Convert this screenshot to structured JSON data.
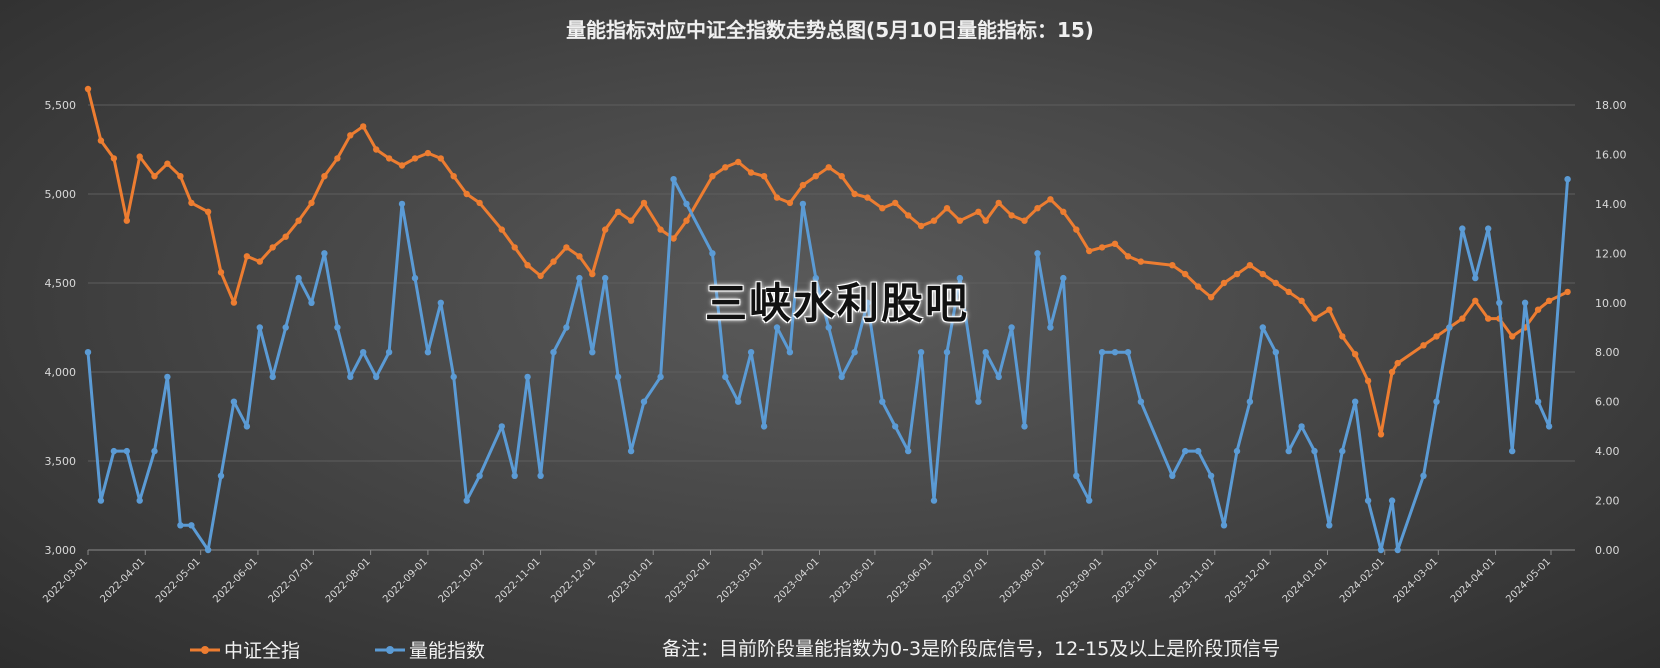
{
  "title": "量能指标对应中证全指数走势总图(5月10日量能指标：15)",
  "footnote": "备注：目前阶段量能指数为0-3是阶段底信号，12-15及以上是阶段顶信号",
  "watermark": "三峡水利股吧",
  "colors": {
    "orange": "#ed7d31",
    "blue": "#5b9bd5",
    "text": "#d9d9d9",
    "grid": "#5e5e5e"
  },
  "chart_data": {
    "type": "line",
    "title": "量能指标对应中证全指数走势总图(5月10日量能指标：15)",
    "x_tick_labels": [
      "2022-03-01",
      "2022-04-01",
      "2022-05-01",
      "2022-06-01",
      "2022-07-01",
      "2022-08-01",
      "2022-09-01",
      "2022-10-01",
      "2022-11-01",
      "2022-12-01",
      "2023-01-01",
      "2023-02-01",
      "2023-03-01",
      "2023-04-01",
      "2023-05-01",
      "2023-06-01",
      "2023-07-01",
      "2023-08-01",
      "2023-09-01",
      "2023-10-01",
      "2023-11-01",
      "2023-12-01",
      "2024-01-01",
      "2024-02-01",
      "2024-03-01",
      "2024-04-01",
      "2024-05-01"
    ],
    "y_left": {
      "min": 3000,
      "max": 5500,
      "ticks": [
        "3,000",
        "3,500",
        "4,000",
        "4,500",
        "5,000",
        "5,500"
      ]
    },
    "y_right": {
      "min": 0,
      "max": 18,
      "ticks": [
        "0.00",
        "2.00",
        "4.00",
        "6.00",
        "8.00",
        "10.00",
        "12.00",
        "14.00",
        "16.00",
        "18.00"
      ]
    },
    "grid": "horizontal",
    "legend_position": "bottom-left",
    "series": [
      {
        "name": "中证全指",
        "axis": "left",
        "color": "#ed7d31",
        "x": [
          "2022-03-01",
          "2022-03-08",
          "2022-03-15",
          "2022-03-22",
          "2022-03-29",
          "2022-04-06",
          "2022-04-13",
          "2022-04-20",
          "2022-04-26",
          "2022-05-05",
          "2022-05-12",
          "2022-05-19",
          "2022-05-26",
          "2022-06-02",
          "2022-06-09",
          "2022-06-16",
          "2022-06-23",
          "2022-06-30",
          "2022-07-07",
          "2022-07-14",
          "2022-07-21",
          "2022-07-28",
          "2022-08-04",
          "2022-08-11",
          "2022-08-18",
          "2022-08-25",
          "2022-09-01",
          "2022-09-08",
          "2022-09-15",
          "2022-09-22",
          "2022-09-29",
          "2022-10-11",
          "2022-10-18",
          "2022-10-25",
          "2022-11-01",
          "2022-11-08",
          "2022-11-15",
          "2022-11-22",
          "2022-11-29",
          "2022-12-06",
          "2022-12-13",
          "2022-12-20",
          "2022-12-27",
          "2023-01-05",
          "2023-01-12",
          "2023-01-19",
          "2023-02-02",
          "2023-02-09",
          "2023-02-16",
          "2023-02-23",
          "2023-03-02",
          "2023-03-09",
          "2023-03-16",
          "2023-03-23",
          "2023-03-30",
          "2023-04-06",
          "2023-04-13",
          "2023-04-20",
          "2023-04-27",
          "2023-05-05",
          "2023-05-12",
          "2023-05-19",
          "2023-05-26",
          "2023-06-02",
          "2023-06-09",
          "2023-06-16",
          "2023-06-26",
          "2023-06-30",
          "2023-07-07",
          "2023-07-14",
          "2023-07-21",
          "2023-07-28",
          "2023-08-04",
          "2023-08-11",
          "2023-08-18",
          "2023-08-25",
          "2023-09-01",
          "2023-09-08",
          "2023-09-15",
          "2023-09-22",
          "2023-10-09",
          "2023-10-16",
          "2023-10-23",
          "2023-10-30",
          "2023-11-06",
          "2023-11-13",
          "2023-11-20",
          "2023-11-27",
          "2023-12-04",
          "2023-12-11",
          "2023-12-18",
          "2023-12-25",
          "2024-01-02",
          "2024-01-09",
          "2024-01-16",
          "2024-01-23",
          "2024-01-30",
          "2024-02-05",
          "2024-02-08",
          "2024-02-22",
          "2024-02-29",
          "2024-03-07",
          "2024-03-14",
          "2024-03-21",
          "2024-03-28",
          "2024-04-03",
          "2024-04-10",
          "2024-04-17",
          "2024-04-24",
          "2024-04-30",
          "2024-05-10"
        ],
        "values": [
          5590,
          5300,
          5200,
          4850,
          5210,
          5100,
          5170,
          5100,
          4950,
          4900,
          4560,
          4390,
          4650,
          4620,
          4700,
          4760,
          4850,
          4950,
          5100,
          5200,
          5330,
          5380,
          5250,
          5200,
          5160,
          5200,
          5230,
          5200,
          5100,
          5000,
          4950,
          4800,
          4700,
          4600,
          4540,
          4620,
          4700,
          4650,
          4550,
          4800,
          4900,
          4850,
          4950,
          4800,
          4750,
          4850,
          5100,
          5150,
          5180,
          5120,
          5100,
          4980,
          4950,
          5050,
          5100,
          5150,
          5100,
          5000,
          4980,
          4920,
          4950,
          4880,
          4820,
          4850,
          4920,
          4850,
          4900,
          4850,
          4950,
          4880,
          4850,
          4920,
          4970,
          4900,
          4800,
          4680,
          4700,
          4720,
          4650,
          4620,
          4600,
          4550,
          4480,
          4420,
          4500,
          4550,
          4600,
          4550,
          4500,
          4450,
          4400,
          4300,
          4350,
          4200,
          4100,
          3950,
          3650,
          4000,
          4050,
          4150,
          4200,
          4250,
          4300,
          4400,
          4300,
          4300,
          4200,
          4250,
          4350,
          4400,
          4450
        ]
      },
      {
        "name": "量能指数",
        "axis": "right",
        "color": "#5b9bd5",
        "x": [
          "2022-03-01",
          "2022-03-08",
          "2022-03-15",
          "2022-03-22",
          "2022-03-29",
          "2022-04-06",
          "2022-04-13",
          "2022-04-20",
          "2022-04-26",
          "2022-05-05",
          "2022-05-12",
          "2022-05-19",
          "2022-05-26",
          "2022-06-02",
          "2022-06-09",
          "2022-06-16",
          "2022-06-23",
          "2022-06-30",
          "2022-07-07",
          "2022-07-14",
          "2022-07-21",
          "2022-07-28",
          "2022-08-04",
          "2022-08-11",
          "2022-08-18",
          "2022-08-25",
          "2022-09-01",
          "2022-09-08",
          "2022-09-15",
          "2022-09-22",
          "2022-09-29",
          "2022-10-11",
          "2022-10-18",
          "2022-10-25",
          "2022-11-01",
          "2022-11-08",
          "2022-11-15",
          "2022-11-22",
          "2022-11-29",
          "2022-12-06",
          "2022-12-13",
          "2022-12-20",
          "2022-12-27",
          "2023-01-05",
          "2023-01-12",
          "2023-01-19",
          "2023-02-02",
          "2023-02-09",
          "2023-02-16",
          "2023-02-23",
          "2023-03-02",
          "2023-03-09",
          "2023-03-16",
          "2023-03-23",
          "2023-03-30",
          "2023-04-06",
          "2023-04-13",
          "2023-04-20",
          "2023-04-27",
          "2023-05-05",
          "2023-05-12",
          "2023-05-19",
          "2023-05-26",
          "2023-06-02",
          "2023-06-09",
          "2023-06-16",
          "2023-06-26",
          "2023-06-30",
          "2023-07-07",
          "2023-07-14",
          "2023-07-21",
          "2023-07-28",
          "2023-08-04",
          "2023-08-11",
          "2023-08-18",
          "2023-08-25",
          "2023-09-01",
          "2023-09-08",
          "2023-09-15",
          "2023-09-22",
          "2023-10-09",
          "2023-10-16",
          "2023-10-23",
          "2023-10-30",
          "2023-11-06",
          "2023-11-13",
          "2023-11-20",
          "2023-11-27",
          "2023-12-04",
          "2023-12-11",
          "2023-12-18",
          "2023-12-25",
          "2024-01-02",
          "2024-01-09",
          "2024-01-16",
          "2024-01-23",
          "2024-01-30",
          "2024-02-05",
          "2024-02-08",
          "2024-02-22",
          "2024-02-29",
          "2024-03-07",
          "2024-03-14",
          "2024-03-21",
          "2024-03-28",
          "2024-04-03",
          "2024-04-10",
          "2024-04-17",
          "2024-04-24",
          "2024-04-30",
          "2024-05-10"
        ],
        "values": [
          8,
          2,
          4,
          4,
          2,
          4,
          7,
          1,
          1,
          0,
          3,
          6,
          5,
          9,
          7,
          9,
          11,
          10,
          12,
          9,
          7,
          8,
          7,
          8,
          14,
          11,
          8,
          10,
          7,
          2,
          3,
          5,
          3,
          7,
          3,
          8,
          9,
          11,
          8,
          11,
          7,
          4,
          6,
          7,
          15,
          14,
          12,
          7,
          6,
          8,
          5,
          9,
          8,
          14,
          11,
          9,
          7,
          8,
          10,
          6,
          5,
          4,
          8,
          2,
          8,
          11,
          6,
          8,
          7,
          9,
          5,
          12,
          9,
          11,
          3,
          2,
          8,
          8,
          8,
          6,
          3,
          4,
          4,
          3,
          1,
          4,
          6,
          9,
          8,
          4,
          5,
          4,
          1,
          4,
          6,
          2,
          0,
          2,
          0,
          3,
          6,
          9,
          13,
          11,
          13,
          10,
          4,
          10,
          6,
          5,
          15
        ]
      }
    ]
  }
}
